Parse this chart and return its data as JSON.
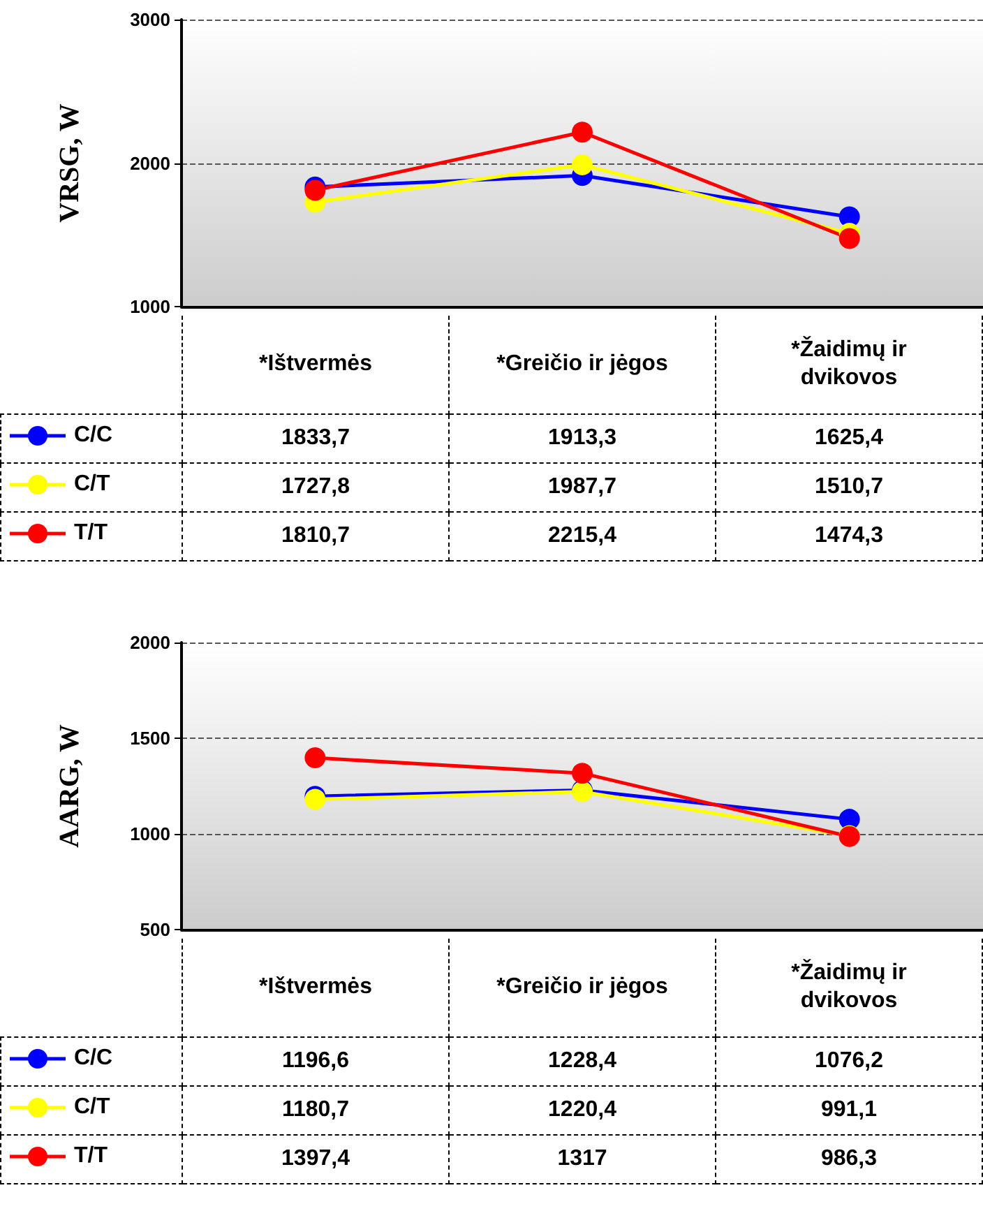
{
  "chart_data": [
    {
      "type": "line",
      "ylabel": "VRSG, W",
      "categories": [
        "*Ištvermės",
        "*Greičio ir jėgos",
        "*Žaidimų ir dvikovos"
      ],
      "series": [
        {
          "name": "C/C",
          "color": "#0000ff",
          "values": [
            1833.7,
            1913.3,
            1625.4
          ],
          "value_labels": [
            "1833,7",
            "1913,3",
            "1625,4"
          ]
        },
        {
          "name": "C/T",
          "color": "#ffff00",
          "values": [
            1727.8,
            1987.7,
            1510.7
          ],
          "value_labels": [
            "1727,8",
            "1987,7",
            "1510,7"
          ]
        },
        {
          "name": "T/T",
          "color": "#ff0000",
          "values": [
            1810.7,
            2215.4,
            1474.3
          ],
          "value_labels": [
            "1810,7",
            "2215,4",
            "1474,3"
          ]
        }
      ],
      "ylim": [
        1000,
        3000
      ],
      "yticks": [
        1000,
        2000,
        3000
      ],
      "grid": "y",
      "legend": "bottom",
      "marker": "circle"
    },
    {
      "type": "line",
      "ylabel": "AARG, W",
      "categories": [
        "*Ištvermės",
        "*Greičio ir jėgos",
        "*Žaidimų ir dvikovos"
      ],
      "series": [
        {
          "name": "C/C",
          "color": "#0000ff",
          "values": [
            1196.6,
            1228.4,
            1076.2
          ],
          "value_labels": [
            "1196,6",
            "1228,4",
            "1076,2"
          ]
        },
        {
          "name": "C/T",
          "color": "#ffff00",
          "values": [
            1180.7,
            1220.4,
            991.1
          ],
          "value_labels": [
            "1180,7",
            "1220,4",
            "991,1"
          ]
        },
        {
          "name": "T/T",
          "color": "#ff0000",
          "values": [
            1397.4,
            1317,
            986.3
          ],
          "value_labels": [
            "1397,4",
            "1317",
            "986,3"
          ]
        }
      ],
      "ylim": [
        500,
        2000
      ],
      "yticks": [
        500,
        1000,
        1500,
        2000
      ],
      "grid": "y",
      "legend": "bottom",
      "marker": "circle"
    }
  ]
}
